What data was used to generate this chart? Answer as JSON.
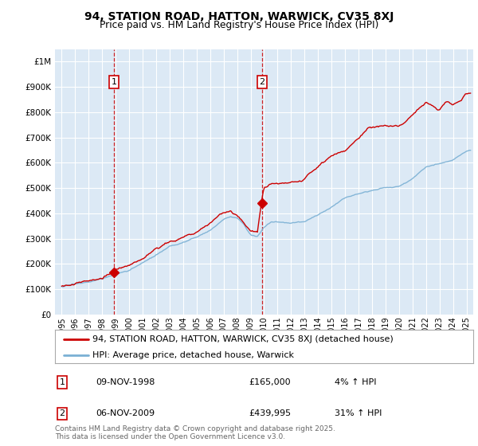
{
  "title_line1": "94, STATION ROAD, HATTON, WARWICK, CV35 8XJ",
  "title_line2": "Price paid vs. HM Land Registry's House Price Index (HPI)",
  "background_color": "#ffffff",
  "plot_bg_color": "#dce9f5",
  "grid_color": "#ffffff",
  "red_line_color": "#cc0000",
  "blue_line_color": "#7ab0d4",
  "sale1_date_x": 1998.86,
  "sale1_price": 165000,
  "sale2_date_x": 2009.85,
  "sale2_price": 439995,
  "ylim_max": 1050000,
  "ylim_min": 0,
  "xlim_min": 1994.5,
  "xlim_max": 2025.5,
  "yticks": [
    0,
    100000,
    200000,
    300000,
    400000,
    500000,
    600000,
    700000,
    800000,
    900000,
    1000000
  ],
  "ytick_labels": [
    "£0",
    "£100K",
    "£200K",
    "£300K",
    "£400K",
    "£500K",
    "£600K",
    "£700K",
    "£800K",
    "£900K",
    "£1M"
  ],
  "xticks": [
    1995,
    1996,
    1997,
    1998,
    1999,
    2000,
    2001,
    2002,
    2003,
    2004,
    2005,
    2006,
    2007,
    2008,
    2009,
    2010,
    2011,
    2012,
    2013,
    2014,
    2015,
    2016,
    2017,
    2018,
    2019,
    2020,
    2021,
    2022,
    2023,
    2024,
    2025
  ],
  "legend1_label": "94, STATION ROAD, HATTON, WARWICK, CV35 8XJ (detached house)",
  "legend2_label": "HPI: Average price, detached house, Warwick",
  "marker1_label": "1",
  "marker2_label": "2",
  "table_data": [
    {
      "num": "1",
      "date": "09-NOV-1998",
      "price": "£165,000",
      "hpi": "4% ↑ HPI"
    },
    {
      "num": "2",
      "date": "06-NOV-2009",
      "price": "£439,995",
      "hpi": "31% ↑ HPI"
    }
  ],
  "footnote": "Contains HM Land Registry data © Crown copyright and database right 2025.\nThis data is licensed under the Open Government Licence v3.0."
}
